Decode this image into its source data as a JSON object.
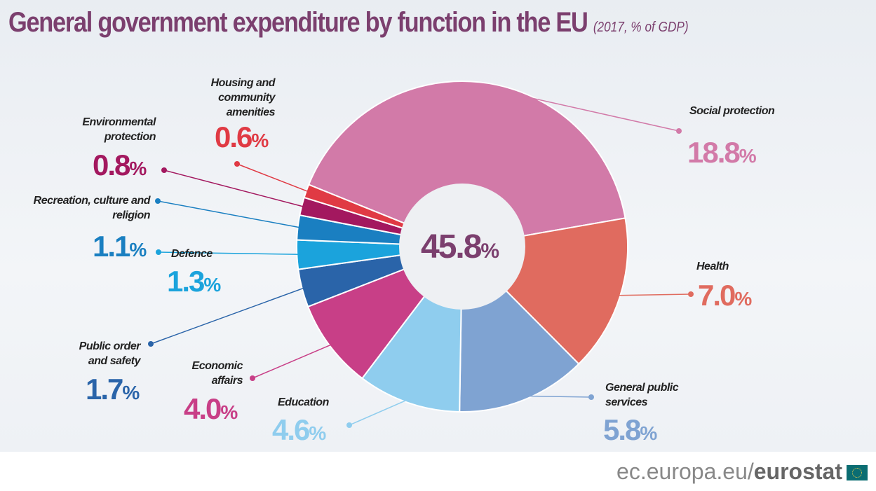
{
  "chart_data": {
    "type": "pie",
    "title": "General government expenditure by function in the EU",
    "subtitle": "(2017, % of GDP)",
    "total": {
      "value": "45.8",
      "unit": "%"
    },
    "slices": [
      {
        "label": "Social protection",
        "value": 18.8,
        "display": "18.8",
        "color": "#d27aa8"
      },
      {
        "label": "Health",
        "value": 7.0,
        "display": "7.0",
        "color": "#e06b5f"
      },
      {
        "label": "General public services",
        "value": 5.8,
        "display": "5.8",
        "color": "#7fa3d2"
      },
      {
        "label": "Education",
        "value": 4.6,
        "display": "4.6",
        "color": "#8fcdee"
      },
      {
        "label": "Economic affairs",
        "value": 4.0,
        "display": "4.0",
        "color": "#c83f87"
      },
      {
        "label": "Public order and safety",
        "value": 1.7,
        "display": "1.7",
        "color": "#2a64a9"
      },
      {
        "label": "Defence",
        "value": 1.3,
        "display": "1.3",
        "color": "#1ba3dc"
      },
      {
        "label": "Recreation, culture and religion",
        "value": 1.1,
        "display": "1.1",
        "color": "#1a7fc1"
      },
      {
        "label": "Environmental protection",
        "value": 0.8,
        "display": "0.8",
        "color": "#a3185f"
      },
      {
        "label": "Housing and community amenities",
        "value": 0.6,
        "display": "0.6",
        "color": "#e03a44"
      }
    ],
    "unit": "%"
  },
  "footer": {
    "site": "ec.europa.eu/",
    "brand": "eurostat"
  },
  "colors": {
    "title": "#7b3f6e"
  }
}
